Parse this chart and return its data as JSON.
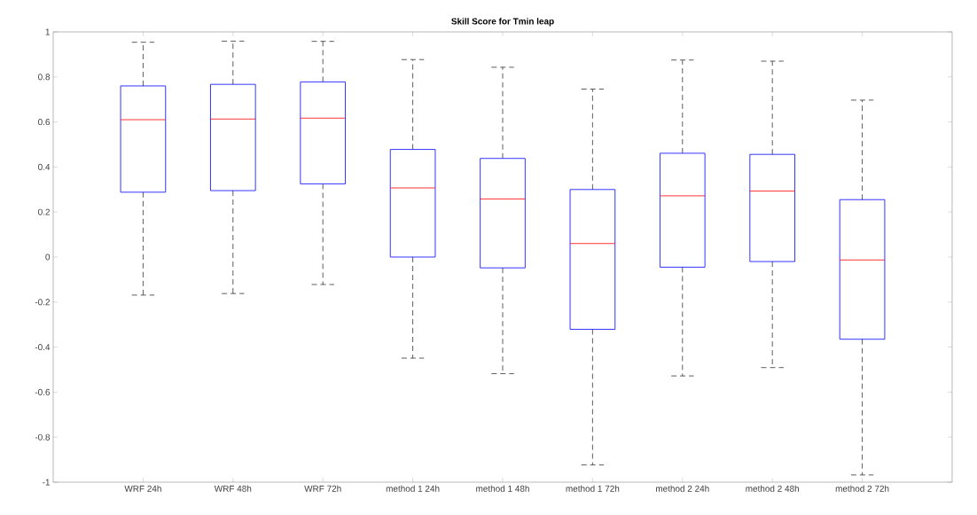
{
  "chart_data": {
    "type": "box",
    "title": "Skill Score for Tmin leap",
    "categories": [
      "WRF 24h",
      "WRF 48h",
      "WRF 72h",
      "method 1 24h",
      "method 1 48h",
      "method 1 72h",
      "method 2 24h",
      "method 2 48h",
      "method 2 72h"
    ],
    "boxes": [
      {
        "low": -0.169,
        "q1": 0.288,
        "median": 0.61,
        "q3": 0.76,
        "high": 0.954
      },
      {
        "low": -0.162,
        "q1": 0.295,
        "median": 0.613,
        "q3": 0.767,
        "high": 0.959
      },
      {
        "low": -0.122,
        "q1": 0.325,
        "median": 0.617,
        "q3": 0.778,
        "high": 0.958
      },
      {
        "low": -0.449,
        "q1": 0.0,
        "median": 0.307,
        "q3": 0.478,
        "high": 0.877
      },
      {
        "low": -0.518,
        "q1": -0.048,
        "median": 0.258,
        "q3": 0.438,
        "high": 0.843
      },
      {
        "low": -0.923,
        "q1": -0.321,
        "median": 0.06,
        "q3": 0.3,
        "high": 0.746
      },
      {
        "low": -0.528,
        "q1": -0.045,
        "median": 0.272,
        "q3": 0.461,
        "high": 0.875
      },
      {
        "low": -0.491,
        "q1": -0.02,
        "median": 0.293,
        "q3": 0.456,
        "high": 0.87
      },
      {
        "low": -0.968,
        "q1": -0.365,
        "median": -0.013,
        "q3": 0.255,
        "high": 0.697
      }
    ],
    "color": "#0000ff",
    "ylim": [
      -1,
      1
    ],
    "yticks": [
      -1,
      -0.8,
      -0.6,
      -0.4,
      -0.2,
      0,
      0.2,
      0.4,
      0.6,
      0.8,
      1
    ],
    "grid": false
  }
}
